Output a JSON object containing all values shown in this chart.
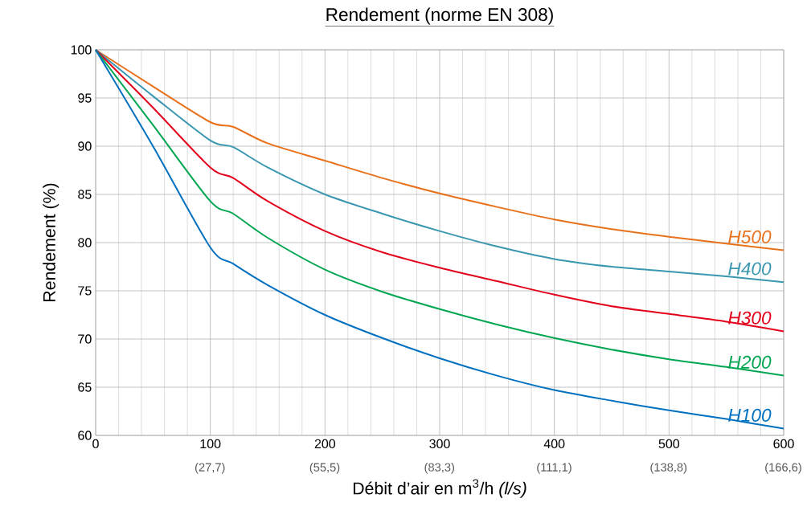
{
  "chart_data": {
    "type": "line",
    "title": "Rendement (norme EN 308)",
    "xlabel": "Débit d’air en m$^{3}$/h *(l/s)*",
    "ylabel": "Rendement (%)",
    "x": [
      0,
      50,
      100,
      120,
      150,
      200,
      250,
      300,
      350,
      400,
      450,
      500,
      550,
      600
    ],
    "series": [
      {
        "name": "H500",
        "color": "#e8711c",
        "values": [
          100,
          96.2,
          92.5,
          92.0,
          90.3,
          88.5,
          86.7,
          85.1,
          83.7,
          82.4,
          81.4,
          80.6,
          79.9,
          79.2
        ]
      },
      {
        "name": "H400",
        "color": "#3a97b0",
        "values": [
          100,
          95.2,
          90.6,
          89.9,
          87.8,
          85.0,
          83.0,
          81.2,
          79.6,
          78.3,
          77.5,
          77.0,
          76.5,
          75.9
        ]
      },
      {
        "name": "H300",
        "color": "#e3001b",
        "values": [
          100,
          94.0,
          87.8,
          86.7,
          84.3,
          81.2,
          79.0,
          77.4,
          76.0,
          74.6,
          73.4,
          72.6,
          71.8,
          70.8
        ]
      },
      {
        "name": "H200",
        "color": "#00a651",
        "values": [
          100,
          92.2,
          84.3,
          83.0,
          80.5,
          77.2,
          74.9,
          73.1,
          71.5,
          70.1,
          68.9,
          67.9,
          67.1,
          66.2
        ]
      },
      {
        "name": "H100",
        "color": "#0070c0",
        "values": [
          100,
          90.0,
          79.5,
          77.8,
          75.6,
          72.5,
          70.1,
          68.0,
          66.2,
          64.7,
          63.6,
          62.6,
          61.7,
          60.7
        ]
      }
    ],
    "xlim": [
      0,
      600
    ],
    "xticks": [
      0,
      100,
      200,
      300,
      400,
      500,
      600
    ],
    "x2lim": [
      0,
      166.7
    ],
    "x2ticks": [
      {
        "value": 27.7,
        "label": "(27,7)"
      },
      {
        "value": 55.5,
        "label": "(55,5)"
      },
      {
        "value": 83.3,
        "label": "(83,3)"
      },
      {
        "value": 111.1,
        "label": "(111,1)"
      },
      {
        "value": 138.8,
        "label": "(138,8)"
      },
      {
        "value": 166.6,
        "label": "(166,6)"
      }
    ],
    "ylim": [
      60,
      100
    ],
    "yticks": [
      60,
      65,
      70,
      75,
      80,
      85,
      90,
      95,
      100
    ],
    "grid": true,
    "marker": "none",
    "line_style": "solid"
  }
}
